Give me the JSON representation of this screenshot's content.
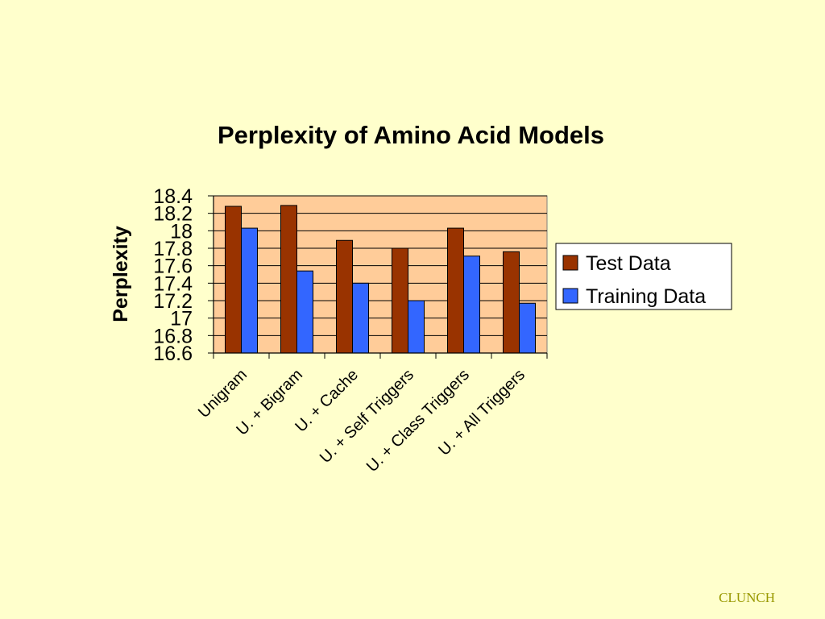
{
  "chart_data": {
    "type": "bar",
    "title": "Perplexity of Amino Acid Models",
    "xlabel": "",
    "ylabel": "Perplexity",
    "categories": [
      "Unigram",
      "U. + Bigram",
      "U. + Cache",
      "U. + Self Triggers",
      "U. + Class Triggers",
      "U. + All Triggers"
    ],
    "series": [
      {
        "name": "Test Data",
        "color": "#993300",
        "values": [
          18.28,
          18.29,
          17.89,
          17.8,
          18.03,
          17.76
        ]
      },
      {
        "name": "Training Data",
        "color": "#3366ff",
        "values": [
          18.03,
          17.54,
          17.4,
          17.2,
          17.71,
          17.17
        ]
      }
    ],
    "ylim": [
      16.6,
      18.4
    ],
    "yticks": [
      "16.6",
      "16.8",
      "17",
      "17.2",
      "17.4",
      "17.6",
      "17.8",
      "18",
      "18.2",
      "18.4"
    ],
    "grid": true,
    "legend_position": "right",
    "plot_background": "#ffcc99"
  },
  "footer": {
    "text": "CLUNCH"
  }
}
